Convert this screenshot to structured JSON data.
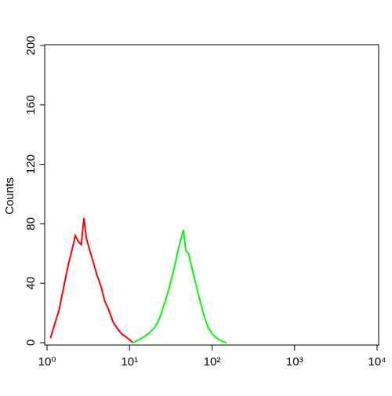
{
  "chart_data": {
    "type": "line",
    "y_label": "Counts",
    "log_x": true,
    "xlim": [
      1,
      10000
    ],
    "xticks": [
      {
        "value": 1,
        "label": "10⁰"
      },
      {
        "value": 10,
        "label": "10¹"
      },
      {
        "value": 100,
        "label": "10²"
      },
      {
        "value": 1000,
        "label": "10³"
      },
      {
        "value": 10000,
        "label": "10⁴"
      }
    ],
    "ylim": [
      0,
      200
    ],
    "yticks": [
      0,
      40,
      80,
      120,
      160,
      200
    ],
    "series": [
      {
        "color": "#ff0000",
        "x": [
          1.1,
          1.2,
          1.4,
          1.6,
          1.8,
          2,
          2.2,
          2.4,
          2.6,
          2.8,
          3,
          3.3,
          3.6,
          4,
          4.5,
          5,
          5.6,
          6.3,
          7,
          8,
          9,
          10,
          11
        ],
        "values": [
          3,
          10,
          22,
          38,
          52,
          62,
          72,
          68,
          66,
          84,
          70,
          62,
          55,
          46,
          38,
          28,
          22,
          14,
          10,
          6,
          4,
          2,
          0
        ]
      },
      {
        "color": "#00ff00",
        "x": [
          11,
          13,
          15,
          17,
          20,
          23,
          26,
          30,
          34,
          38,
          42,
          45,
          48,
          52,
          56,
          62,
          70,
          80,
          90,
          100,
          115,
          130,
          150
        ],
        "values": [
          0,
          2,
          4,
          6,
          10,
          16,
          25,
          36,
          48,
          60,
          70,
          76,
          62,
          60,
          52,
          42,
          30,
          18,
          10,
          6,
          3,
          1,
          0
        ]
      }
    ]
  }
}
